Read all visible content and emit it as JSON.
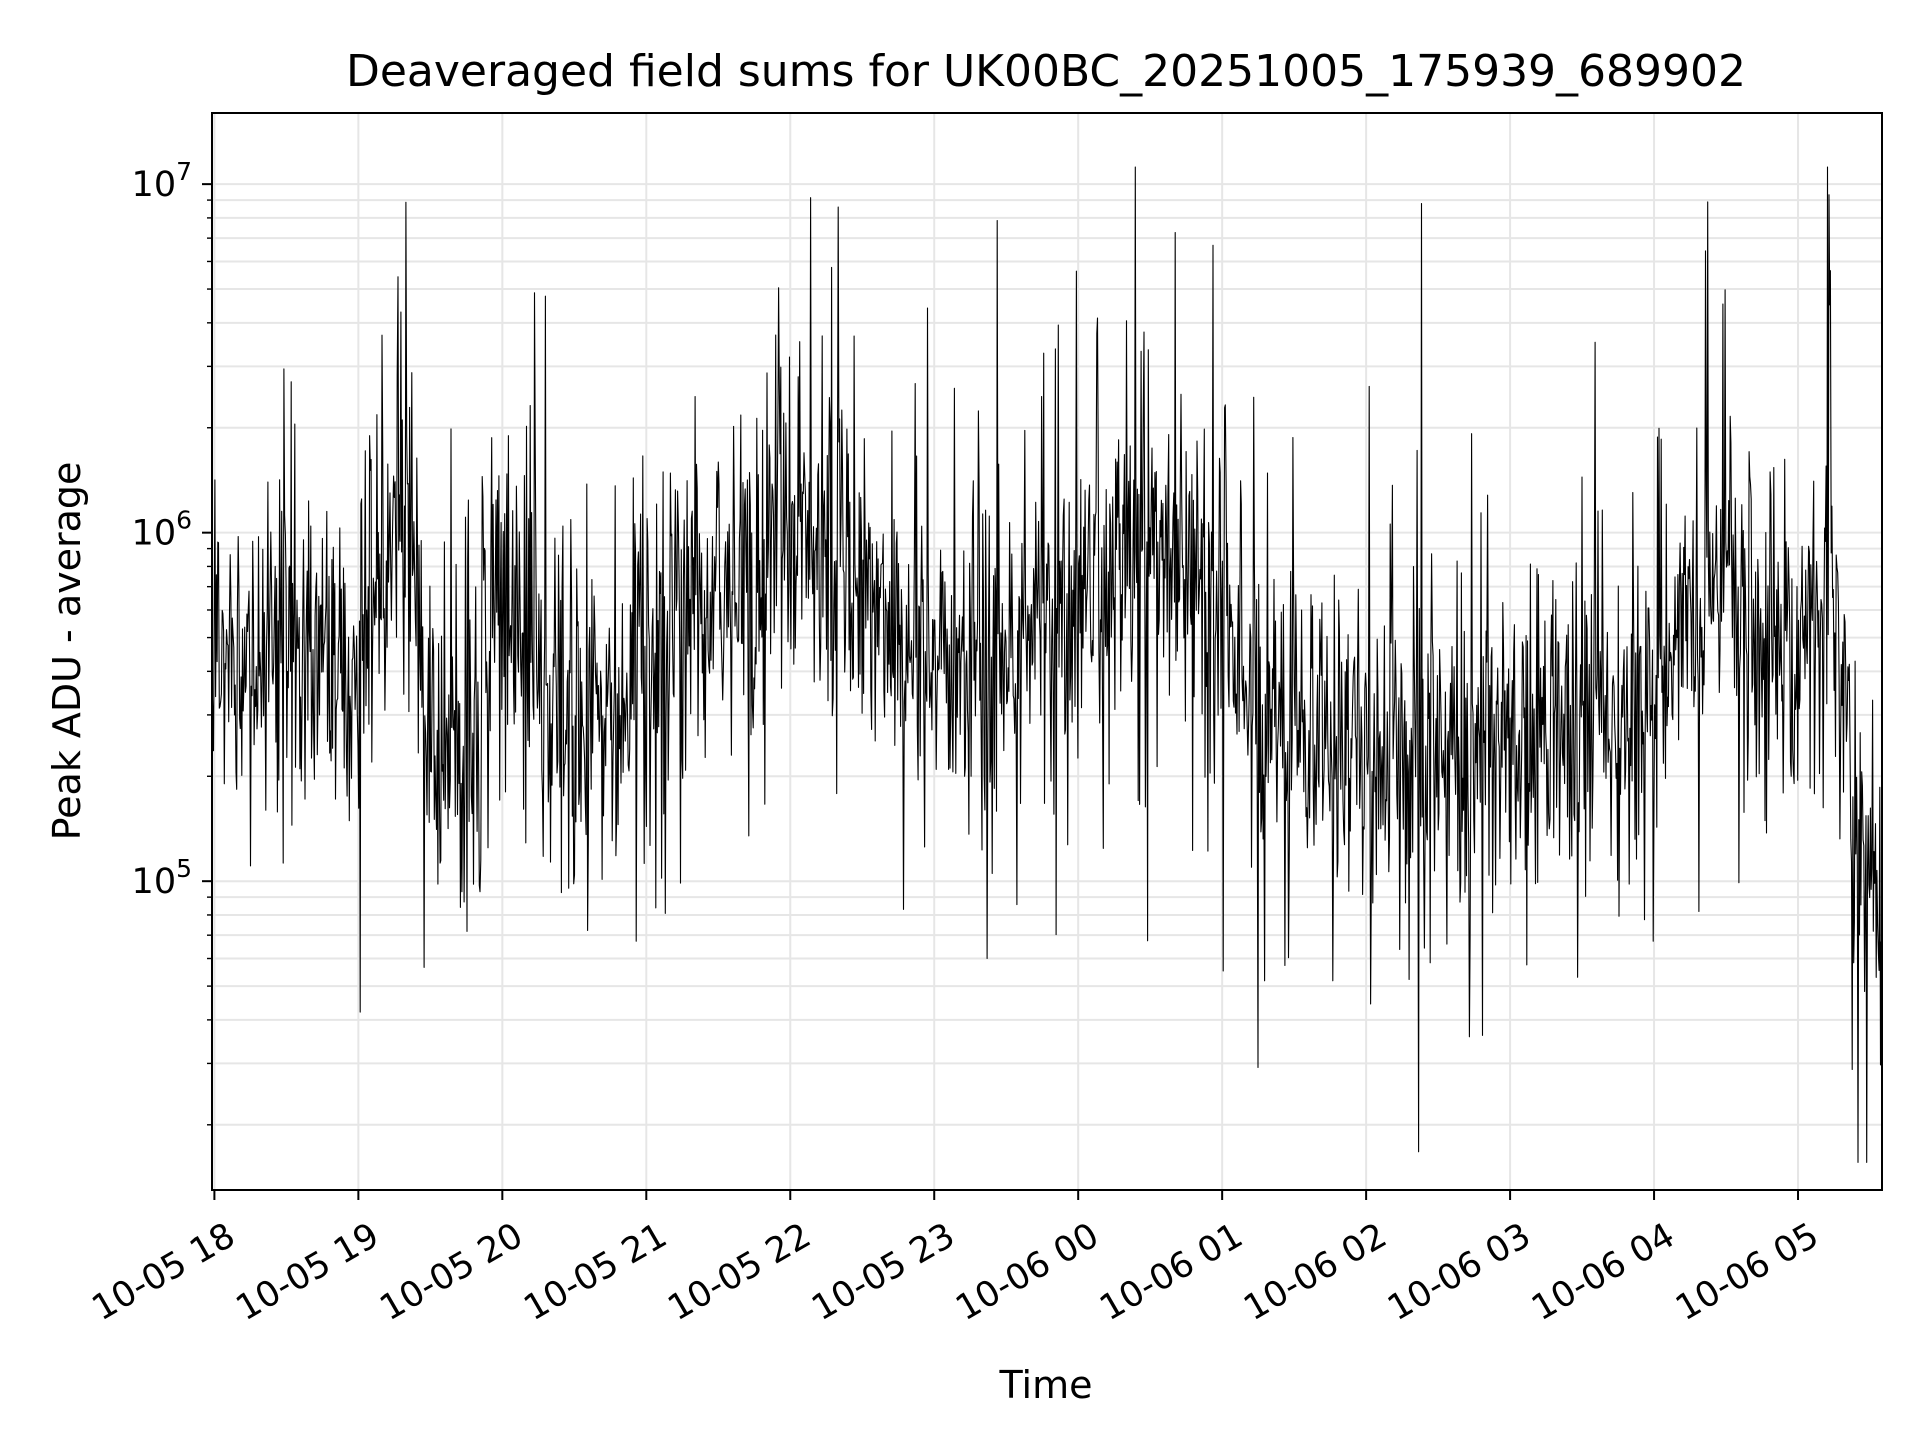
{
  "chart_data": {
    "type": "line",
    "title": "Deaveraged field sums for UK00BC_20251005_175939_689902",
    "xlabel": "Time",
    "ylabel": "Peak ADU - average",
    "y_scale": "log",
    "grid": true,
    "legend": false,
    "colors": {
      "line": "#000000",
      "grid": "#e6e6e6",
      "background": "#ffffff"
    },
    "x_tick_labels": [
      "10-05 18",
      "10-05 19",
      "10-05 20",
      "10-05 21",
      "10-05 22",
      "10-05 23",
      "10-06 00",
      "10-06 01",
      "10-06 02",
      "10-06 03",
      "10-06 04",
      "10-06 05"
    ],
    "x_range": [
      "2025-10-05 17:59",
      "2025-10-06 05:35"
    ],
    "y_tick_labels": [
      {
        "base": "10",
        "exp": "5",
        "value": 100000
      },
      {
        "base": "10",
        "exp": "6",
        "value": 1000000
      },
      {
        "base": "10",
        "exp": "7",
        "value": 10000000
      }
    ],
    "ylim": [
      13000,
      16000000
    ],
    "series": [
      {
        "x": [
          "2025-10-05 18:00",
          "2025-10-05 18:20",
          "2025-10-05 18:40",
          "2025-10-05 19:00",
          "2025-10-05 19:10",
          "2025-10-05 19:20",
          "2025-10-05 19:30",
          "2025-10-05 19:45",
          "2025-10-05 20:00",
          "2025-10-05 20:10",
          "2025-10-05 20:30",
          "2025-10-05 20:45",
          "2025-10-05 21:00",
          "2025-10-05 21:20",
          "2025-10-05 21:40",
          "2025-10-05 22:00",
          "2025-10-05 22:20",
          "2025-10-05 22:40",
          "2025-10-05 23:00",
          "2025-10-05 23:30",
          "2025-10-05 23:45",
          "2025-10-06 00:00",
          "2025-10-06 00:20",
          "2025-10-06 00:45",
          "2025-10-06 01:00",
          "2025-10-06 01:15",
          "2025-10-06 01:30",
          "2025-10-06 02:00",
          "2025-10-06 02:30",
          "2025-10-06 03:00",
          "2025-10-06 03:30",
          "2025-10-06 04:00",
          "2025-10-06 04:15",
          "2025-10-06 04:30",
          "2025-10-06 05:00",
          "2025-10-06 05:15",
          "2025-10-06 05:25",
          "2025-10-06 05:35"
        ],
        "values": [
          450000,
          480000,
          420000,
          400000,
          800000,
          1200000,
          250000,
          220000,
          700000,
          450000,
          280000,
          250000,
          400000,
          650000,
          700000,
          900000,
          1100000,
          550000,
          420000,
          500000,
          650000,
          480000,
          900000,
          850000,
          600000,
          300000,
          280000,
          250000,
          220000,
          240000,
          260000,
          400000,
          600000,
          700000,
          480000,
          750000,
          90000,
          80000
        ]
      }
    ]
  }
}
